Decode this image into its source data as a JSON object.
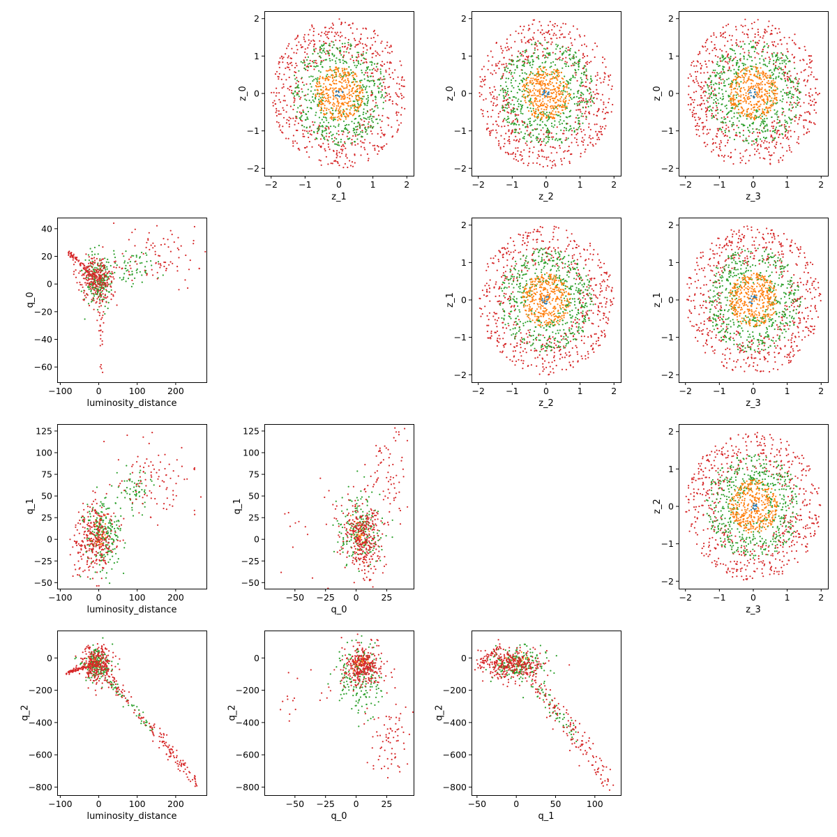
{
  "chart_data": {
    "type": "scatter",
    "series_colors": [
      "#1f77b4",
      "#ff7f0e",
      "#2ca02c",
      "#d62728"
    ],
    "panels": [
      {
        "row": 0,
        "col": 1,
        "kind": "ring",
        "xlabel": "z_1",
        "ylabel": "z_0",
        "xlim": [
          -2.2,
          2.2
        ],
        "ylim": [
          -2.2,
          2.2
        ],
        "xticks": [
          -2,
          -1,
          0,
          1,
          2
        ],
        "yticks": [
          -2,
          -1,
          0,
          1,
          2
        ],
        "xtick_labels": [
          "−2",
          "−1",
          "0",
          "1",
          "2"
        ],
        "ytick_labels": [
          "−2",
          "−1",
          "0",
          "1",
          "2"
        ]
      },
      {
        "row": 0,
        "col": 2,
        "kind": "ring",
        "xlabel": "z_2",
        "ylabel": "z_0",
        "xlim": [
          -2.2,
          2.2
        ],
        "ylim": [
          -2.2,
          2.2
        ],
        "xticks": [
          -2,
          -1,
          0,
          1,
          2
        ],
        "yticks": [
          -2,
          -1,
          0,
          1,
          2
        ],
        "xtick_labels": [
          "−2",
          "−1",
          "0",
          "1",
          "2"
        ],
        "ytick_labels": [
          "−2",
          "−1",
          "0",
          "1",
          "2"
        ]
      },
      {
        "row": 0,
        "col": 3,
        "kind": "ring",
        "xlabel": "z_3",
        "ylabel": "z_0",
        "xlim": [
          -2.2,
          2.2
        ],
        "ylim": [
          -2.2,
          2.2
        ],
        "xticks": [
          -2,
          -1,
          0,
          1,
          2
        ],
        "yticks": [
          -2,
          -1,
          0,
          1,
          2
        ],
        "xtick_labels": [
          "−2",
          "−1",
          "0",
          "1",
          "2"
        ],
        "ytick_labels": [
          "−2",
          "−1",
          "0",
          "1",
          "2"
        ]
      },
      {
        "row": 1,
        "col": 0,
        "kind": "cloud",
        "xlabel": "luminosity_distance",
        "ylabel": "q_0",
        "xlim": [
          -108,
          280
        ],
        "ylim": [
          -71,
          48
        ],
        "xticks": [
          -100,
          0,
          100,
          200
        ],
        "yticks": [
          -60,
          -40,
          -20,
          0,
          20,
          40
        ],
        "xtick_labels": [
          "−100",
          "0",
          "100",
          "200"
        ],
        "ytick_labels": [
          "−60",
          "−40",
          "−20",
          "0",
          "20",
          "40"
        ],
        "clusters": [
          {
            "series": 2,
            "n": 220,
            "cx": 0,
            "cy": 2,
            "sx": 18,
            "sy": 9
          },
          {
            "series": 2,
            "n": 60,
            "cx": 90,
            "cy": 12,
            "sx": 30,
            "sy": 6
          },
          {
            "series": 3,
            "n": 260,
            "cx": -5,
            "cy": 4,
            "sx": 22,
            "sy": 8
          },
          {
            "series": 3,
            "n": 90,
            "cx": 160,
            "cy": 20,
            "sx": 60,
            "sy": 12
          },
          {
            "series": 3,
            "n": 30,
            "cx": 5,
            "cy": -30,
            "sx": 6,
            "sy": 16
          }
        ],
        "lines": [
          {
            "series": 3,
            "n": 70,
            "x0": -85,
            "y0": 24,
            "x1": -10,
            "y1": 5,
            "spread": 1.2
          }
        ]
      },
      {
        "row": 1,
        "col": 2,
        "kind": "ring",
        "xlabel": "z_2",
        "ylabel": "z_1",
        "xlim": [
          -2.2,
          2.2
        ],
        "ylim": [
          -2.2,
          2.2
        ],
        "xticks": [
          -2,
          -1,
          0,
          1,
          2
        ],
        "yticks": [
          -2,
          -1,
          0,
          1,
          2
        ],
        "xtick_labels": [
          "−2",
          "−1",
          "0",
          "1",
          "2"
        ],
        "ytick_labels": [
          "−2",
          "−1",
          "0",
          "1",
          "2"
        ]
      },
      {
        "row": 1,
        "col": 3,
        "kind": "ring",
        "xlabel": "z_3",
        "ylabel": "z_1",
        "xlim": [
          -2.2,
          2.2
        ],
        "ylim": [
          -2.2,
          2.2
        ],
        "xticks": [
          -2,
          -1,
          0,
          1,
          2
        ],
        "yticks": [
          -2,
          -1,
          0,
          1,
          2
        ],
        "xtick_labels": [
          "−2",
          "−1",
          "0",
          "1",
          "2"
        ],
        "ytick_labels": [
          "−2",
          "−1",
          "0",
          "1",
          "2"
        ]
      },
      {
        "row": 2,
        "col": 0,
        "kind": "cloud",
        "xlabel": "luminosity_distance",
        "ylabel": "q_1",
        "xlim": [
          -108,
          280
        ],
        "ylim": [
          -57,
          133
        ],
        "xticks": [
          -100,
          0,
          100,
          200
        ],
        "yticks": [
          -50,
          -25,
          0,
          25,
          50,
          75,
          100,
          125
        ],
        "xtick_labels": [
          "−100",
          "0",
          "100",
          "200"
        ],
        "ytick_labels": [
          "−50",
          "−25",
          "0",
          "25",
          "50",
          "75",
          "100",
          "125"
        ],
        "clusters": [
          {
            "series": 1,
            "n": 40,
            "cx": 0,
            "cy": 5,
            "sx": 10,
            "sy": 10
          },
          {
            "series": 2,
            "n": 220,
            "cx": 10,
            "cy": 5,
            "sx": 25,
            "sy": 20
          },
          {
            "series": 2,
            "n": 60,
            "cx": 90,
            "cy": 55,
            "sx": 25,
            "sy": 12
          },
          {
            "series": 3,
            "n": 300,
            "cx": -10,
            "cy": 0,
            "sx": 28,
            "sy": 22
          },
          {
            "series": 3,
            "n": 100,
            "cx": 150,
            "cy": 75,
            "sx": 60,
            "sy": 25
          }
        ]
      },
      {
        "row": 2,
        "col": 1,
        "kind": "cloud",
        "xlabel": "q_0",
        "ylabel": "q_1",
        "xlim": [
          -75,
          47
        ],
        "ylim": [
          -57,
          133
        ],
        "xticks": [
          -50,
          -25,
          0,
          25
        ],
        "yticks": [
          -50,
          -25,
          0,
          25,
          50,
          75,
          100,
          125
        ],
        "xtick_labels": [
          "−50",
          "−25",
          "0",
          "25"
        ],
        "ytick_labels": [
          "−50",
          "−25",
          "0",
          "25",
          "50",
          "75",
          "100",
          "125"
        ],
        "clusters": [
          {
            "series": 1,
            "n": 40,
            "cx": 2,
            "cy": 5,
            "sx": 4,
            "sy": 10
          },
          {
            "series": 2,
            "n": 200,
            "cx": 3,
            "cy": 10,
            "sx": 9,
            "sy": 22
          },
          {
            "series": 3,
            "n": 320,
            "cx": 6,
            "cy": 0,
            "sx": 8,
            "sy": 20
          },
          {
            "series": 3,
            "n": 80,
            "cx": 25,
            "cy": 70,
            "sx": 10,
            "sy": 30
          },
          {
            "series": 3,
            "n": 20,
            "cx": -35,
            "cy": 10,
            "sx": 20,
            "sy": 40
          }
        ]
      },
      {
        "row": 2,
        "col": 3,
        "kind": "ring",
        "xlabel": "z_3",
        "ylabel": "z_2",
        "xlim": [
          -2.2,
          2.2
        ],
        "ylim": [
          -2.2,
          2.2
        ],
        "xticks": [
          -2,
          -1,
          0,
          1,
          2
        ],
        "yticks": [
          -2,
          -1,
          0,
          1,
          2
        ],
        "xtick_labels": [
          "−2",
          "−1",
          "0",
          "1",
          "2"
        ],
        "ytick_labels": [
          "−2",
          "−1",
          "0",
          "1",
          "2"
        ]
      },
      {
        "row": 3,
        "col": 0,
        "kind": "cloud",
        "xlabel": "luminosity_distance",
        "ylabel": "q_2",
        "xlim": [
          -108,
          280
        ],
        "ylim": [
          -850,
          170
        ],
        "xticks": [
          -100,
          0,
          100,
          200
        ],
        "yticks": [
          -800,
          -600,
          -400,
          -200,
          0
        ],
        "xtick_labels": [
          "−100",
          "0",
          "100",
          "200"
        ],
        "ytick_labels": [
          "−800",
          "−600",
          "−400",
          "−200",
          "0"
        ],
        "clusters": [
          {
            "series": 1,
            "n": 30,
            "cx": -10,
            "cy": -40,
            "sx": 8,
            "sy": 25
          },
          {
            "series": 2,
            "n": 180,
            "cx": -5,
            "cy": -40,
            "sx": 18,
            "sy": 50
          },
          {
            "series": 3,
            "n": 280,
            "cx": -5,
            "cy": -40,
            "sx": 20,
            "sy": 55
          }
        ],
        "lines": [
          {
            "series": 3,
            "n": 70,
            "x0": -85,
            "y0": -95,
            "x1": -15,
            "y1": -40,
            "spread": 5
          },
          {
            "series": 3,
            "n": 150,
            "x0": 20,
            "y0": -110,
            "x1": 260,
            "y1": -790,
            "spread": 25
          },
          {
            "series": 2,
            "n": 50,
            "x0": 30,
            "y0": -150,
            "x1": 140,
            "y1": -450,
            "spread": 18
          }
        ]
      },
      {
        "row": 3,
        "col": 1,
        "kind": "cloud",
        "xlabel": "q_0",
        "ylabel": "q_2",
        "xlim": [
          -75,
          47
        ],
        "ylim": [
          -850,
          170
        ],
        "xticks": [
          -50,
          -25,
          0,
          25
        ],
        "yticks": [
          -800,
          -600,
          -400,
          -200,
          0
        ],
        "xtick_labels": [
          "−50",
          "−25",
          "0",
          "25"
        ],
        "ytick_labels": [
          "−800",
          "−600",
          "−400",
          "−200",
          "0"
        ],
        "clusters": [
          {
            "series": 1,
            "n": 30,
            "cx": 3,
            "cy": -40,
            "sx": 4,
            "sy": 25
          },
          {
            "series": 2,
            "n": 200,
            "cx": 2,
            "cy": -100,
            "sx": 10,
            "sy": 110
          },
          {
            "series": 3,
            "n": 320,
            "cx": 6,
            "cy": -50,
            "sx": 8,
            "sy": 60
          },
          {
            "series": 3,
            "n": 80,
            "cx": 28,
            "cy": -500,
            "sx": 9,
            "sy": 170
          },
          {
            "series": 3,
            "n": 18,
            "cx": -35,
            "cy": -250,
            "sx": 18,
            "sy": 150
          }
        ]
      },
      {
        "row": 3,
        "col": 2,
        "kind": "cloud",
        "xlabel": "q_1",
        "ylabel": "q_2",
        "xlim": [
          -57,
          133
        ],
        "ylim": [
          -850,
          170
        ],
        "xticks": [
          -50,
          0,
          50,
          100
        ],
        "yticks": [
          -800,
          -600,
          -400,
          -200,
          0
        ],
        "xtick_labels": [
          "−50",
          "0",
          "50",
          "100"
        ],
        "ytick_labels": [
          "−800",
          "−600",
          "−400",
          "−200",
          "0"
        ],
        "clusters": [
          {
            "series": 1,
            "n": 30,
            "cx": 0,
            "cy": -30,
            "sx": 8,
            "sy": 25
          },
          {
            "series": 2,
            "n": 200,
            "cx": 0,
            "cy": -40,
            "sx": 18,
            "sy": 50
          },
          {
            "series": 3,
            "n": 300,
            "cx": -5,
            "cy": -40,
            "sx": 20,
            "sy": 45
          }
        ],
        "lines": [
          {
            "series": 3,
            "n": 140,
            "x0": 20,
            "y0": -120,
            "x1": 120,
            "y1": -790,
            "spread": 45
          },
          {
            "series": 2,
            "n": 60,
            "x0": 20,
            "y0": -150,
            "x1": 75,
            "y1": -470,
            "spread": 30
          },
          {
            "series": 3,
            "n": 50,
            "x0": -50,
            "y0": -60,
            "x1": -20,
            "y1": 80,
            "spread": 15
          }
        ]
      }
    ]
  }
}
